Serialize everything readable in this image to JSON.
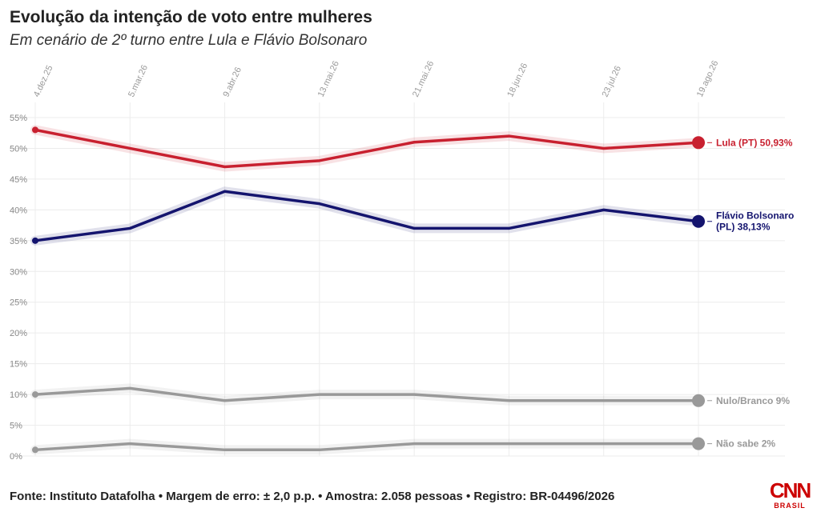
{
  "header": {
    "title": "Evolução da intenção de voto entre mulheres",
    "subtitle": "Em cenário de 2º turno entre Lula e Flávio Bolsonaro"
  },
  "footer": {
    "source": "Fonte: Instituto Datafolha • Margem de erro: ± 2,0 p.p. • Amostra: 2.058 pessoas • Registro: BR-04496/2026"
  },
  "logo": {
    "brand": "CNN",
    "sub": "BRASIL",
    "color": "#cc0000"
  },
  "chart_data": {
    "type": "line",
    "x": [
      "4.dez.25",
      "5.mar.26",
      "9.abr.26",
      "13.mai.26",
      "21.mai.26",
      "18.jun.26",
      "23.jul.26",
      "19.ago.26"
    ],
    "ylim": [
      0,
      55
    ],
    "yticks": [
      0,
      5,
      10,
      15,
      20,
      25,
      30,
      35,
      40,
      45,
      50,
      55
    ],
    "ytick_suffix": "%",
    "grid": true,
    "series": [
      {
        "name": "Lula (PT)",
        "label": "Lula (PT) 50,93%",
        "color": "#c8202f",
        "values": [
          53,
          50,
          47,
          48,
          51,
          52,
          50,
          50.93
        ]
      },
      {
        "name": "Flávio Bolsonaro (PL)",
        "label_lines": [
          "Flávio Bolsonaro",
          "(PL) 38,13%"
        ],
        "color": "#14146e",
        "values": [
          35,
          37,
          43,
          41,
          37,
          37,
          40,
          38.13
        ]
      },
      {
        "name": "Nulo/Branco",
        "label": "Nulo/Branco 9%",
        "color": "#999999",
        "values": [
          10,
          11,
          9,
          10,
          10,
          9,
          9,
          9
        ]
      },
      {
        "name": "Não sabe",
        "label": "Não sabe 2%",
        "color": "#999999",
        "values": [
          1,
          2,
          1,
          1,
          2,
          2,
          2,
          2
        ]
      }
    ]
  }
}
